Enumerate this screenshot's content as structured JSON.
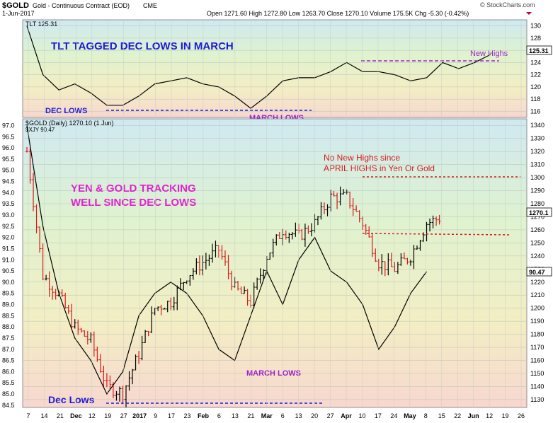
{
  "header": {
    "symbol": "$GOLD",
    "desc": "Gold - Continuous Contract (EOD)",
    "exchange": "CME",
    "date": "1-Jun-2017",
    "ohlc_text": "Open 1271.60  High 1272.80  Low 1263.70  Close 1270.10  Volume 175.5K  Chg -5.30 (-0.42%)",
    "open": 1271.6,
    "high": 1272.8,
    "low": 1263.7,
    "close": 1270.1,
    "volume": "175.5K",
    "chg": "-5.30 (-0.42%)",
    "brand": "© StockCharts.com"
  },
  "colors": {
    "blue": "#1a1ad6",
    "magenta": "#e020d0",
    "purple": "#9a22c8",
    "red": "#d81a1a",
    "up_bar": "#000000",
    "down_bar": "#d81a1a"
  },
  "chart_data": [
    {
      "type": "line",
      "legend": "TLT 125.31",
      "last_value_label": "125.31",
      "ylim": [
        115,
        131
      ],
      "yticks": [
        116,
        118,
        120,
        122,
        124,
        126,
        128,
        130
      ],
      "x": [
        0,
        7,
        14,
        21,
        28,
        35,
        42,
        49,
        56,
        63,
        70,
        77,
        84,
        91,
        98,
        105,
        112,
        119,
        126,
        133,
        140,
        147,
        154,
        161,
        168,
        175,
        182,
        189,
        196,
        203,
        210,
        217
      ],
      "y": [
        130,
        122,
        119.5,
        120.5,
        119,
        117,
        117,
        118.5,
        120.5,
        121,
        121.5,
        120.5,
        120,
        118.5,
        116.5,
        118.5,
        121,
        121.5,
        121.5,
        122.5,
        124,
        122.5,
        122.5,
        122,
        121,
        121.5,
        124,
        123,
        124,
        125.31,
        null,
        null
      ],
      "annotations": [
        "TLT TAGGED DEC LOWS IN MARCH",
        "DEC LOWS",
        "MARCH LOWS",
        "New Highs"
      ]
    },
    {
      "type": "line",
      "legend": [
        "$GOLD (Daily) 1270.10 (1 Jun)",
        "$XJY 90.47"
      ],
      "series": [
        {
          "name": "$GOLD",
          "style": "ohlc-bars",
          "last_value_label": "1270.1",
          "x": [
            0,
            7,
            14,
            21,
            28,
            35,
            42,
            49,
            56,
            63,
            70,
            77,
            84,
            91,
            98,
            105,
            112,
            119,
            126,
            133,
            140,
            147,
            154,
            161,
            168,
            175,
            182,
            189,
            196,
            203,
            210,
            217
          ],
          "y": [
            1320,
            1225,
            1210,
            1185,
            1175,
            1140,
            1135,
            1165,
            1200,
            1205,
            1225,
            1235,
            1245,
            1215,
            1205,
            1240,
            1260,
            1255,
            1265,
            1285,
            1285,
            1265,
            1235,
            1230,
            1240,
            1265,
            1270.1,
            null,
            null,
            null,
            null,
            null
          ]
        },
        {
          "name": "$XJY",
          "style": "line",
          "last_value_label": "90.47",
          "x": [
            0,
            7,
            14,
            21,
            28,
            35,
            42,
            49,
            56,
            63,
            70,
            77,
            84,
            91,
            98,
            105,
            112,
            119,
            126,
            133,
            140,
            147,
            154,
            161,
            168,
            175,
            182,
            189,
            196,
            203,
            210,
            217
          ],
          "y": [
            97,
            92.5,
            89.5,
            87.5,
            86.5,
            85,
            86,
            88.5,
            89.5,
            90,
            89.5,
            88.5,
            87,
            86.5,
            88.5,
            90.5,
            89,
            91,
            92,
            90.5,
            90,
            89,
            87,
            88,
            89.5,
            90.47,
            null,
            null,
            null,
            null,
            null,
            null
          ]
        }
      ],
      "ylim_left": [
        84.4,
        97.3
      ],
      "ylim_right": [
        1124,
        1345
      ],
      "yticks_left": [
        84.5,
        85.0,
        85.5,
        86.0,
        86.5,
        87.0,
        87.5,
        88.0,
        88.5,
        89.0,
        89.5,
        90.0,
        90.5,
        91.0,
        91.5,
        92.0,
        92.5,
        93.0,
        93.5,
        94.0,
        94.5,
        95.0,
        95.5,
        96.0,
        96.5,
        97.0
      ],
      "yticks_right": [
        1130,
        1140,
        1150,
        1160,
        1170,
        1180,
        1190,
        1200,
        1210,
        1220,
        1230,
        1240,
        1250,
        1260,
        1270,
        1280,
        1290,
        1300,
        1310,
        1320,
        1330,
        1340
      ],
      "annotations": [
        "YEN & GOLD TRACKING",
        "WELL SINCE DEC LOWS",
        "No New Highs since",
        "APRIL HIGHS in Yen Or Gold",
        "MARCH LOWS",
        "Dec Lows"
      ]
    }
  ],
  "xticks": [
    "7",
    "14",
    "21",
    "Dec",
    "12",
    "19",
    "27",
    "2017",
    "9",
    "17",
    "23",
    "Feb",
    "6",
    "13",
    "21",
    "Mar",
    "6",
    "13",
    "20",
    "27",
    "Apr",
    "10",
    "17",
    "24",
    "May",
    "8",
    "15",
    "22",
    "Jun",
    "12",
    "19",
    "26"
  ],
  "labels": {
    "tlt_title": "TLT TAGGED DEC LOWS IN MARCH",
    "dec_lows_top": "DEC LOWS",
    "march_lows_top": "MARCH LOWS",
    "new_highs": "New Highs",
    "yen_gold_1": "YEN & GOLD TRACKING",
    "yen_gold_2": "WELL SINCE DEC LOWS",
    "no_new_highs_1": "No New Highs since",
    "no_new_highs_2": "APRIL HIGHS in Yen Or Gold",
    "march_lows_bottom": "MARCH LOWS",
    "dec_lows_bottom": "Dec Lows"
  }
}
